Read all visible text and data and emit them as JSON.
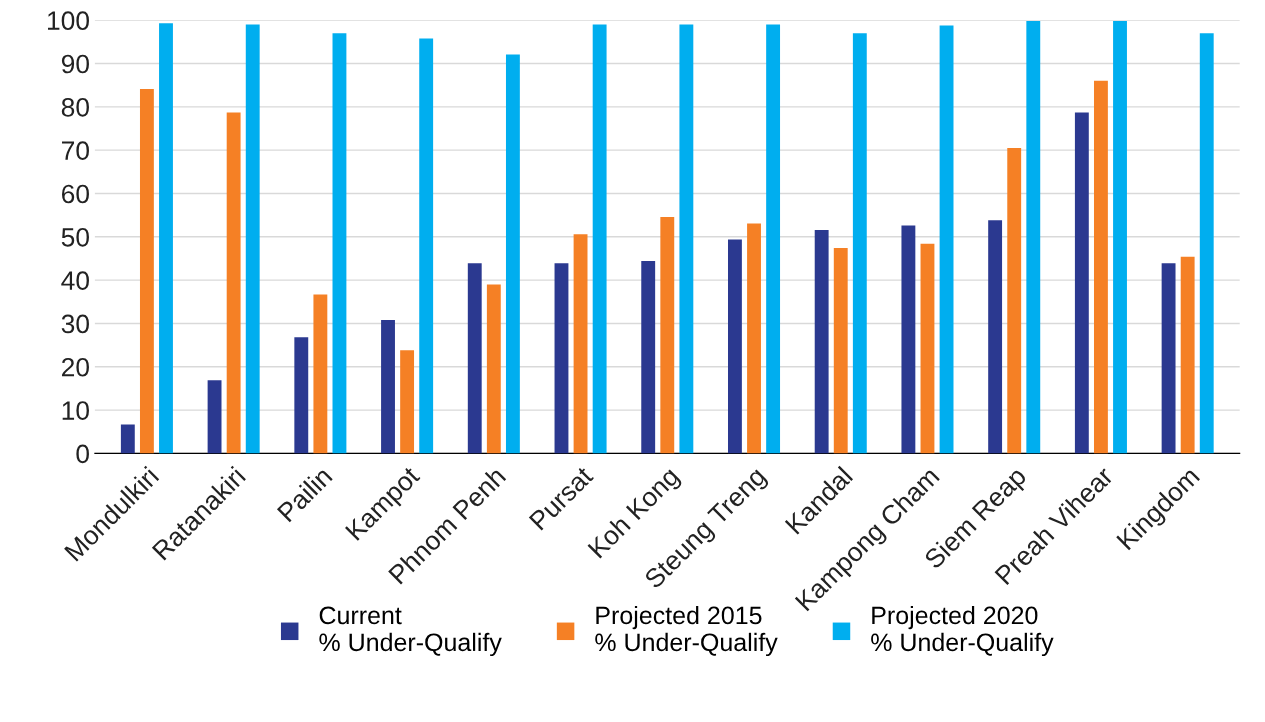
{
  "chart_data": {
    "type": "bar",
    "categories": [
      "Mondulkiri",
      "Ratanakiri",
      "Pailin",
      "Kampot",
      "Phnom Penh",
      "Pursat",
      "Koh Kong",
      "Steung Treng",
      "Kandal",
      "Kampong Cham",
      "Siem Reap",
      "Preah Vihear",
      "Kingdom"
    ],
    "series": [
      {
        "name": "Current\n% Under-Qualify",
        "color": "#2b3990",
        "values": [
          6.7,
          16.9,
          26.8,
          30.8,
          43.9,
          43.9,
          44.4,
          49.4,
          51.6,
          52.6,
          53.8,
          78.7,
          43.9
        ]
      },
      {
        "name": "Projected 2015\n% Under-Qualify",
        "color": "#f58025",
        "values": [
          84.1,
          78.7,
          36.7,
          23.8,
          39.0,
          50.6,
          54.6,
          53.1,
          47.4,
          48.4,
          70.5,
          86.0,
          45.4
        ]
      },
      {
        "name": "Projected 2020\n% Under-Qualify",
        "color": "#00aeef",
        "values": [
          99.3,
          99.0,
          97.0,
          95.8,
          92.1,
          99.0,
          99.0,
          99.0,
          97.0,
          98.8,
          99.8,
          99.8,
          97.0
        ]
      }
    ],
    "ylim": [
      0,
      100
    ],
    "yticks": [
      0,
      10,
      20,
      30,
      40,
      50,
      60,
      70,
      80,
      90,
      100
    ],
    "grid": "y",
    "legend": "bottom"
  }
}
